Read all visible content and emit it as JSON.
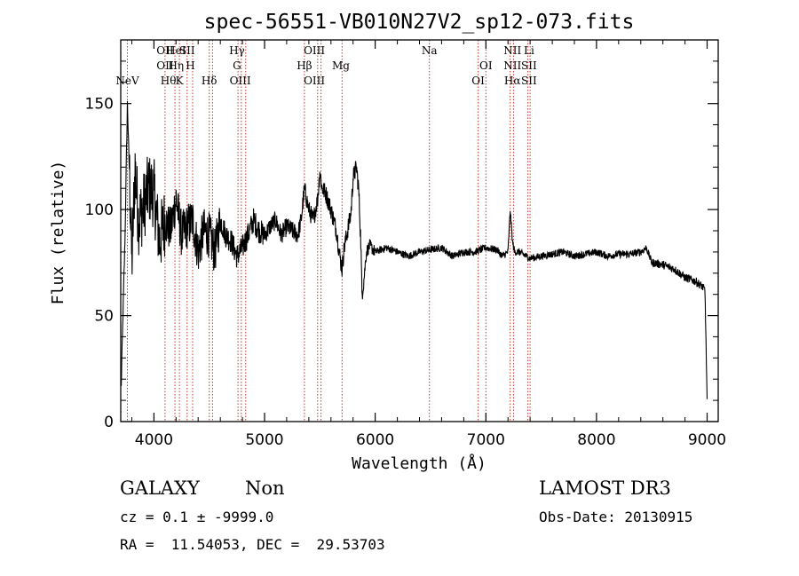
{
  "chart_data": {
    "type": "line",
    "title": "spec-56551-VB010N27V2_sp12-073.fits",
    "xlabel": "Wavelength (Å)",
    "ylabel": "Flux (relative)",
    "xlim": [
      3700,
      9100
    ],
    "ylim": [
      0,
      180
    ],
    "xticks": [
      4000,
      5000,
      6000,
      7000,
      8000,
      9000
    ],
    "yticks": [
      0,
      50,
      100,
      150
    ],
    "grid": false,
    "spectrum_anchors": {
      "x": [
        3700,
        3710,
        3740,
        3760,
        3780,
        3800,
        3830,
        3860,
        3900,
        3950,
        4000,
        4050,
        4100,
        4150,
        4200,
        4250,
        4300,
        4350,
        4400,
        4450,
        4500,
        4550,
        4600,
        4650,
        4700,
        4750,
        4800,
        4850,
        4900,
        4950,
        5000,
        5050,
        5100,
        5150,
        5200,
        5250,
        5300,
        5330,
        5360,
        5400,
        5440,
        5480,
        5500,
        5520,
        5550,
        5600,
        5650,
        5680,
        5700,
        5720,
        5750,
        5780,
        5800,
        5830,
        5850,
        5870,
        5880,
        5900,
        5920,
        5950,
        6000,
        6100,
        6200,
        6300,
        6400,
        6500,
        6600,
        6700,
        6800,
        6900,
        7000,
        7100,
        7150,
        7200,
        7220,
        7240,
        7260,
        7300,
        7400,
        7500,
        7600,
        7700,
        7800,
        7900,
        8000,
        8100,
        8200,
        8300,
        8400,
        8450,
        8500,
        8600,
        8700,
        8800,
        8900,
        8950,
        8980,
        9000
      ],
      "y": [
        2,
        30,
        90,
        150,
        115,
        75,
        120,
        95,
        100,
        110,
        108,
        85,
        95,
        90,
        105,
        88,
        92,
        95,
        80,
        90,
        88,
        80,
        95,
        88,
        85,
        78,
        82,
        88,
        95,
        90,
        88,
        92,
        95,
        88,
        92,
        90,
        88,
        95,
        110,
        100,
        95,
        105,
        118,
        110,
        108,
        100,
        90,
        78,
        72,
        82,
        90,
        98,
        115,
        120,
        110,
        85,
        60,
        68,
        80,
        83,
        80,
        82,
        80,
        78,
        80,
        81,
        82,
        78,
        80,
        80,
        82,
        81,
        78,
        80,
        100,
        85,
        80,
        80,
        77,
        78,
        79,
        80,
        78,
        79,
        80,
        78,
        79,
        79,
        80,
        82,
        75,
        74,
        72,
        68,
        66,
        64,
        62,
        10
      ]
    },
    "spectral_lines": [
      {
        "name": "NeV",
        "wavelength": 3760,
        "row": 3
      },
      {
        "name": "OII",
        "wavelength": 4100,
        "row": 0
      },
      {
        "name": "HeI",
        "wavelength": 4200,
        "row": 0
      },
      {
        "name": "SII",
        "wavelength": 4300,
        "row": 0
      },
      {
        "name": "OII",
        "wavelength": 4100,
        "row": 1
      },
      {
        "name": "Hη",
        "wavelength": 4200,
        "row": 1
      },
      {
        "name": "Hθ",
        "wavelength": 4130,
        "row": 2
      },
      {
        "name": "K",
        "wavelength": 4230,
        "row": 2
      },
      {
        "name": "H",
        "wavelength": 4330,
        "row": 1
      },
      {
        "name": "Hδ",
        "wavelength": 4500,
        "row": 2
      },
      {
        "name": "Hγ",
        "wavelength": 4750,
        "row": 0
      },
      {
        "name": "G",
        "wavelength": 4750,
        "row": 1
      },
      {
        "name": "OIII",
        "wavelength": 4780,
        "row": 2
      },
      {
        "name": "OIII",
        "wavelength": 5450,
        "row": 0
      },
      {
        "name": "Hβ",
        "wavelength": 5360,
        "row": 1
      },
      {
        "name": "OIII",
        "wavelength": 5450,
        "row": 2
      },
      {
        "name": "Mg",
        "wavelength": 5690,
        "row": 1
      },
      {
        "name": "Na",
        "wavelength": 6490,
        "row": 0
      },
      {
        "name": "OI",
        "wavelength": 7000,
        "row": 1
      },
      {
        "name": "OI",
        "wavelength": 6930,
        "row": 2
      },
      {
        "name": "NII",
        "wavelength": 7240,
        "row": 0
      },
      {
        "name": "Li",
        "wavelength": 7390,
        "row": 0
      },
      {
        "name": "NII",
        "wavelength": 7240,
        "row": 1
      },
      {
        "name": "SII",
        "wavelength": 7390,
        "row": 1
      },
      {
        "name": "Hα",
        "wavelength": 7240,
        "row": 2
      },
      {
        "name": "SII",
        "wavelength": 7390,
        "row": 2
      }
    ],
    "marker_lines": [
      3760,
      4100,
      4190,
      4230,
      4300,
      4350,
      4500,
      4530,
      4760,
      4790,
      4830,
      5360,
      5480,
      5510,
      5700,
      6490,
      6930,
      7000,
      7220,
      7250,
      7380,
      7400
    ]
  },
  "info": {
    "object_class": "GALAXY",
    "subclass": "Non",
    "survey": "LAMOST DR3",
    "cz": "cz = 0.1 ± -9999.0",
    "obs_date": "Obs-Date: 20130915",
    "coords": "RA =  11.54053, DEC =  29.53703"
  }
}
